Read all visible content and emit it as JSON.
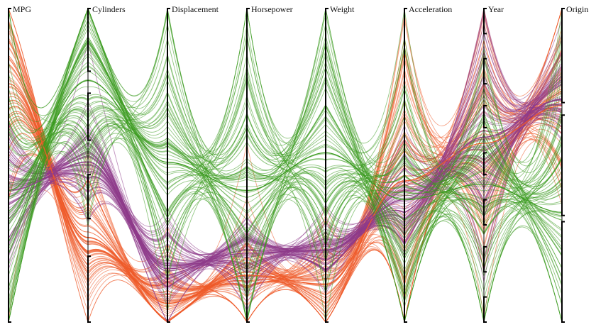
{
  "chart_data": {
    "type": "parallel-coordinates",
    "title": "",
    "dimensions": [
      "MPG",
      "Cylinders",
      "Displacement",
      "Horsepower",
      "Weight",
      "Acceleration",
      "Year",
      "Origin"
    ],
    "series": [
      {
        "color": "#ef5a28",
        "centroid": [
          0.24,
          0.73,
          0.94,
          0.85,
          0.88,
          0.55,
          0.43,
          0.31
        ],
        "spread": [
          0.42,
          0.23,
          0.18,
          0.24,
          0.22,
          0.55,
          0.45,
          0.3
        ]
      },
      {
        "color": "#8e3b8a",
        "centroid": [
          0.58,
          0.49,
          0.83,
          0.78,
          0.77,
          0.61,
          0.41,
          0.29
        ],
        "spread": [
          0.25,
          0.19,
          0.17,
          0.16,
          0.12,
          0.18,
          0.45,
          0.16
        ]
      },
      {
        "color": "#3a9b1f",
        "centroid": [
          0.58,
          0.23,
          0.49,
          0.58,
          0.46,
          0.61,
          0.56,
          0.65
        ],
        "spread": [
          0.55,
          0.45,
          0.47,
          0.55,
          0.45,
          0.52,
          0.5,
          0.55
        ]
      }
    ],
    "axis_brackets": [
      [
        0.0,
        1.0
      ],
      [
        0.0,
        0.2,
        0.27,
        0.42,
        0.53,
        0.67,
        0.79,
        1.0
      ],
      [
        0.0,
        1.0
      ],
      [
        0.0,
        1.0
      ],
      [
        0.0,
        1.0
      ],
      [
        0.0,
        1.0
      ],
      [
        0.0,
        0.08,
        0.16,
        0.24,
        0.31,
        0.38,
        0.46,
        0.53,
        0.61,
        0.69,
        0.76,
        0.84,
        0.92,
        1.0
      ],
      [
        0.0,
        0.3,
        0.34,
        0.66,
        0.68,
        1.0
      ]
    ],
    "lines_per_series": 70,
    "grid": false,
    "legend": "none"
  }
}
